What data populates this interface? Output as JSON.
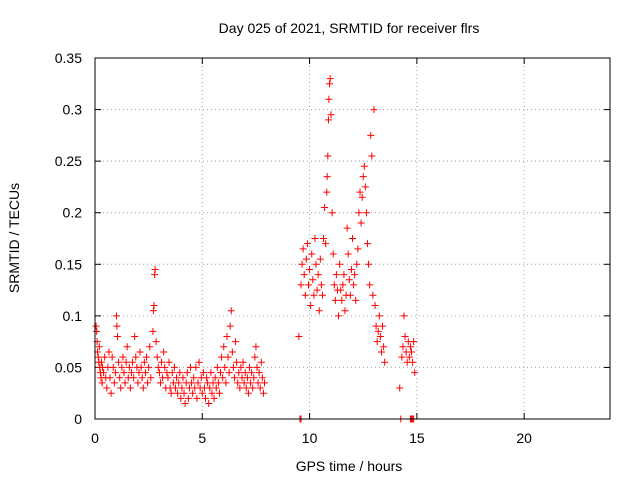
{
  "chart_data": {
    "type": "scatter",
    "title": "Day 025 of 2021, SRMTID for receiver flrs",
    "xlabel": "GPS time / hours",
    "ylabel": "SRMTID / TECUs",
    "xlim": [
      0,
      24
    ],
    "ylim": [
      0,
      0.35
    ],
    "xticks": [
      0,
      5,
      10,
      15,
      20
    ],
    "yticks": [
      0,
      0.05,
      0.1,
      0.15,
      0.2,
      0.25,
      0.3,
      0.35
    ],
    "ytick_labels": [
      "0",
      "0.05",
      "0.1",
      "0.15",
      "0.2",
      "0.25",
      "0.3",
      "0.35"
    ],
    "grid": true,
    "marker": "plus",
    "color": "#ff0000",
    "points": [
      [
        0.05,
        0.09
      ],
      [
        0.08,
        0.085
      ],
      [
        0.1,
        0.075
      ],
      [
        0.12,
        0.065
      ],
      [
        0.15,
        0.06
      ],
      [
        0.18,
        0.055
      ],
      [
        0.2,
        0.07
      ],
      [
        0.22,
        0.05
      ],
      [
        0.25,
        0.045
      ],
      [
        0.28,
        0.04
      ],
      [
        0.3,
        0.055
      ],
      [
        0.33,
        0.035
      ],
      [
        0.35,
        0.05
      ],
      [
        0.4,
        0.045
      ],
      [
        0.45,
        0.06
      ],
      [
        0.5,
        0.04
      ],
      [
        0.55,
        0.03
      ],
      [
        0.6,
        0.05
      ],
      [
        0.65,
        0.065
      ],
      [
        0.7,
        0.04
      ],
      [
        0.75,
        0.025
      ],
      [
        0.8,
        0.06
      ],
      [
        0.85,
        0.05
      ],
      [
        0.9,
        0.035
      ],
      [
        0.95,
        0.045
      ],
      [
        1.0,
        0.1
      ],
      [
        1.02,
        0.09
      ],
      [
        1.05,
        0.08
      ],
      [
        1.1,
        0.055
      ],
      [
        1.15,
        0.04
      ],
      [
        1.2,
        0.03
      ],
      [
        1.25,
        0.05
      ],
      [
        1.3,
        0.06
      ],
      [
        1.35,
        0.045
      ],
      [
        1.4,
        0.035
      ],
      [
        1.45,
        0.055
      ],
      [
        1.5,
        0.07
      ],
      [
        1.55,
        0.04
      ],
      [
        1.6,
        0.05
      ],
      [
        1.65,
        0.03
      ],
      [
        1.7,
        0.045
      ],
      [
        1.75,
        0.055
      ],
      [
        1.8,
        0.04
      ],
      [
        1.85,
        0.08
      ],
      [
        1.9,
        0.06
      ],
      [
        1.95,
        0.05
      ],
      [
        2.0,
        0.035
      ],
      [
        2.05,
        0.045
      ],
      [
        2.1,
        0.065
      ],
      [
        2.15,
        0.05
      ],
      [
        2.2,
        0.04
      ],
      [
        2.25,
        0.03
      ],
      [
        2.3,
        0.055
      ],
      [
        2.35,
        0.045
      ],
      [
        2.4,
        0.06
      ],
      [
        2.45,
        0.035
      ],
      [
        2.5,
        0.05
      ],
      [
        2.55,
        0.07
      ],
      [
        2.6,
        0.04
      ],
      [
        2.7,
        0.085
      ],
      [
        2.72,
        0.105
      ],
      [
        2.75,
        0.11
      ],
      [
        2.78,
        0.14
      ],
      [
        2.8,
        0.145
      ],
      [
        2.85,
        0.075
      ],
      [
        2.9,
        0.06
      ],
      [
        2.95,
        0.05
      ],
      [
        3.0,
        0.045
      ],
      [
        3.05,
        0.035
      ],
      [
        3.1,
        0.055
      ],
      [
        3.15,
        0.04
      ],
      [
        3.2,
        0.065
      ],
      [
        3.25,
        0.05
      ],
      [
        3.3,
        0.03
      ],
      [
        3.35,
        0.045
      ],
      [
        3.4,
        0.04
      ],
      [
        3.45,
        0.055
      ],
      [
        3.5,
        0.03
      ],
      [
        3.55,
        0.025
      ],
      [
        3.6,
        0.045
      ],
      [
        3.65,
        0.035
      ],
      [
        3.7,
        0.05
      ],
      [
        3.75,
        0.03
      ],
      [
        3.8,
        0.04
      ],
      [
        3.85,
        0.025
      ],
      [
        3.9,
        0.035
      ],
      [
        3.95,
        0.045
      ],
      [
        4.0,
        0.02
      ],
      [
        4.05,
        0.03
      ],
      [
        4.1,
        0.04
      ],
      [
        4.15,
        0.025
      ],
      [
        4.2,
        0.015
      ],
      [
        4.25,
        0.035
      ],
      [
        4.3,
        0.045
      ],
      [
        4.35,
        0.02
      ],
      [
        4.4,
        0.03
      ],
      [
        4.45,
        0.05
      ],
      [
        4.5,
        0.035
      ],
      [
        4.55,
        0.025
      ],
      [
        4.6,
        0.04
      ],
      [
        4.65,
        0.03
      ],
      [
        4.7,
        0.05
      ],
      [
        4.75,
        0.02
      ],
      [
        4.8,
        0.035
      ],
      [
        4.85,
        0.055
      ],
      [
        4.9,
        0.03
      ],
      [
        4.95,
        0.04
      ],
      [
        5.0,
        0.025
      ],
      [
        5.05,
        0.045
      ],
      [
        5.1,
        0.03
      ],
      [
        5.15,
        0.02
      ],
      [
        5.2,
        0.04
      ],
      [
        5.25,
        0.035
      ],
      [
        5.3,
        0.015
      ],
      [
        5.35,
        0.03
      ],
      [
        5.4,
        0.045
      ],
      [
        5.45,
        0.025
      ],
      [
        5.5,
        0.035
      ],
      [
        5.55,
        0.02
      ],
      [
        5.6,
        0.04
      ],
      [
        5.65,
        0.03
      ],
      [
        5.7,
        0.05
      ],
      [
        5.75,
        0.035
      ],
      [
        5.8,
        0.025
      ],
      [
        5.85,
        0.045
      ],
      [
        5.9,
        0.06
      ],
      [
        5.95,
        0.04
      ],
      [
        6.0,
        0.07
      ],
      [
        6.05,
        0.05
      ],
      [
        6.1,
        0.035
      ],
      [
        6.15,
        0.08
      ],
      [
        6.2,
        0.06
      ],
      [
        6.25,
        0.045
      ],
      [
        6.3,
        0.09
      ],
      [
        6.35,
        0.105
      ],
      [
        6.4,
        0.065
      ],
      [
        6.45,
        0.05
      ],
      [
        6.5,
        0.04
      ],
      [
        6.55,
        0.075
      ],
      [
        6.6,
        0.055
      ],
      [
        6.65,
        0.035
      ],
      [
        6.7,
        0.045
      ],
      [
        6.75,
        0.03
      ],
      [
        6.8,
        0.05
      ],
      [
        6.85,
        0.04
      ],
      [
        6.9,
        0.055
      ],
      [
        6.95,
        0.035
      ],
      [
        7.0,
        0.045
      ],
      [
        7.05,
        0.03
      ],
      [
        7.1,
        0.04
      ],
      [
        7.15,
        0.025
      ],
      [
        7.2,
        0.05
      ],
      [
        7.25,
        0.035
      ],
      [
        7.3,
        0.045
      ],
      [
        7.35,
        0.03
      ],
      [
        7.4,
        0.04
      ],
      [
        7.45,
        0.06
      ],
      [
        7.5,
        0.07
      ],
      [
        7.55,
        0.05
      ],
      [
        7.6,
        0.035
      ],
      [
        7.65,
        0.045
      ],
      [
        7.7,
        0.03
      ],
      [
        7.75,
        0.055
      ],
      [
        7.8,
        0.04
      ],
      [
        7.85,
        0.025
      ],
      [
        7.9,
        0.035
      ],
      [
        9.5,
        0.08
      ],
      [
        9.6,
        0.13
      ],
      [
        9.65,
        0.15
      ],
      [
        9.7,
        0.165
      ],
      [
        9.75,
        0.14
      ],
      [
        9.8,
        0.12
      ],
      [
        9.85,
        0.155
      ],
      [
        9.9,
        0.17
      ],
      [
        9.95,
        0.13
      ],
      [
        10.0,
        0.145
      ],
      [
        10.05,
        0.11
      ],
      [
        10.1,
        0.16
      ],
      [
        10.15,
        0.135
      ],
      [
        10.2,
        0.12
      ],
      [
        10.25,
        0.175
      ],
      [
        10.3,
        0.15
      ],
      [
        10.35,
        0.125
      ],
      [
        10.4,
        0.14
      ],
      [
        10.45,
        0.105
      ],
      [
        10.5,
        0.155
      ],
      [
        10.55,
        0.13
      ],
      [
        10.6,
        0.12
      ],
      [
        10.65,
        0.175
      ],
      [
        10.7,
        0.205
      ],
      [
        10.75,
        0.17
      ],
      [
        10.8,
        0.22
      ],
      [
        10.82,
        0.235
      ],
      [
        10.85,
        0.255
      ],
      [
        10.88,
        0.29
      ],
      [
        10.9,
        0.31
      ],
      [
        10.93,
        0.325
      ],
      [
        10.96,
        0.33
      ],
      [
        11.0,
        0.295
      ],
      [
        11.05,
        0.2
      ],
      [
        11.1,
        0.16
      ],
      [
        11.15,
        0.13
      ],
      [
        11.2,
        0.115
      ],
      [
        11.25,
        0.14
      ],
      [
        11.3,
        0.125
      ],
      [
        11.35,
        0.1
      ],
      [
        11.4,
        0.15
      ],
      [
        11.45,
        0.125
      ],
      [
        11.5,
        0.115
      ],
      [
        11.55,
        0.13
      ],
      [
        11.6,
        0.14
      ],
      [
        11.65,
        0.105
      ],
      [
        11.7,
        0.12
      ],
      [
        11.75,
        0.185
      ],
      [
        11.8,
        0.16
      ],
      [
        11.85,
        0.135
      ],
      [
        11.9,
        0.12
      ],
      [
        11.95,
        0.145
      ],
      [
        12.0,
        0.175
      ],
      [
        12.05,
        0.13
      ],
      [
        12.1,
        0.14
      ],
      [
        12.15,
        0.115
      ],
      [
        12.2,
        0.15
      ],
      [
        12.25,
        0.165
      ],
      [
        12.3,
        0.2
      ],
      [
        12.35,
        0.22
      ],
      [
        12.4,
        0.19
      ],
      [
        12.45,
        0.215
      ],
      [
        12.5,
        0.235
      ],
      [
        12.55,
        0.245
      ],
      [
        12.6,
        0.225
      ],
      [
        12.65,
        0.2
      ],
      [
        12.7,
        0.17
      ],
      [
        12.75,
        0.15
      ],
      [
        12.8,
        0.13
      ],
      [
        12.85,
        0.275
      ],
      [
        12.9,
        0.255
      ],
      [
        12.95,
        0.12
      ],
      [
        13.0,
        0.3
      ],
      [
        13.05,
        0.11
      ],
      [
        13.1,
        0.09
      ],
      [
        13.15,
        0.075
      ],
      [
        13.2,
        0.085
      ],
      [
        13.25,
        0.1
      ],
      [
        13.3,
        0.08
      ],
      [
        13.35,
        0.065
      ],
      [
        13.4,
        0.09
      ],
      [
        13.45,
        0.07
      ],
      [
        13.5,
        0.055
      ],
      [
        14.2,
        0.03
      ],
      [
        14.3,
        0.06
      ],
      [
        14.35,
        0.07
      ],
      [
        14.4,
        0.1
      ],
      [
        14.45,
        0.08
      ],
      [
        14.5,
        0.065
      ],
      [
        14.55,
        0.055
      ],
      [
        14.6,
        0.075
      ],
      [
        14.65,
        0.06
      ],
      [
        14.7,
        0.07
      ],
      [
        14.75,
        0.065
      ],
      [
        14.8,
        0.055
      ],
      [
        14.85,
        0.075
      ],
      [
        14.9,
        0.045
      ]
    ],
    "zero_points": [
      9.55,
      9.6,
      14.25,
      14.7,
      14.75,
      14.8,
      14.85
    ]
  }
}
